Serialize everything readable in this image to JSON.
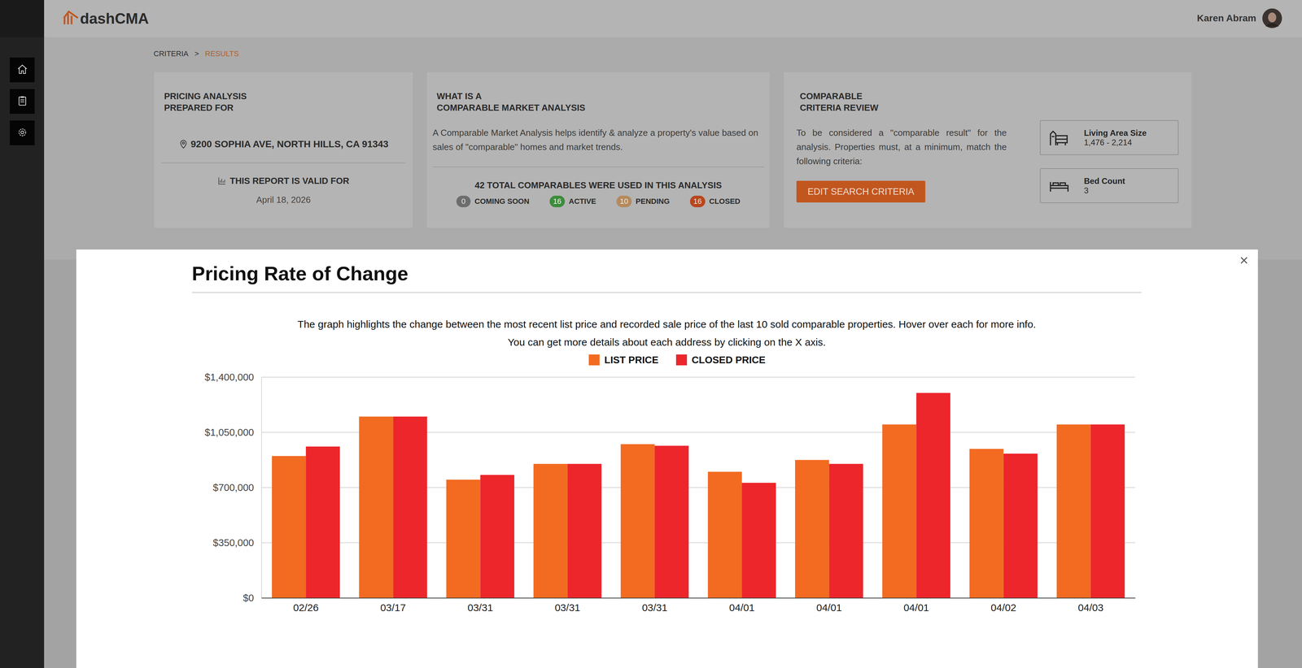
{
  "header": {
    "logo": "dashCMA",
    "user": "Karen Abram"
  },
  "breadcrumb": [
    "CRITERIA",
    ">",
    "RESULTS"
  ],
  "cards": {
    "prepared": {
      "title": [
        "PRICING ANALYSIS",
        "PREPARED FOR"
      ],
      "address": "9200 SOPHIA AVE, NORTH HILLS, CA 91343",
      "valid_label": "THIS REPORT IS VALID FOR",
      "valid_date": "April 18, 2026"
    },
    "about": {
      "title": [
        "WHAT IS A",
        "COMPARABLE MARKET ANALYSIS"
      ],
      "text": "A Comparable Market Analysis helps identify & analyze a property's value based on sales of \"comparable\" homes and market trends.",
      "total": "42 TOTAL COMPARABLES WERE USED IN THIS ANALYSIS",
      "statuses": [
        {
          "count": 0,
          "label": "COMING SOON"
        },
        {
          "count": 16,
          "label": "ACTIVE"
        },
        {
          "count": 10,
          "label": "PENDING"
        },
        {
          "count": 16,
          "label": "CLOSED"
        }
      ]
    },
    "criteria": {
      "title": [
        "COMPARABLE",
        "CRITERIA REVIEW"
      ],
      "text": "To be considered a \"comparable result\" for the analysis. Properties must, at a minimum, match the following criteria:",
      "button": "EDIT SEARCH CRITERIA",
      "items": [
        {
          "label": "Living Area Size",
          "value": "1,476 - 2,214"
        },
        {
          "label": "Bed Count",
          "value": "3"
        }
      ]
    }
  },
  "chart_data": {
    "type": "bar",
    "title": "Pricing Rate of Change",
    "subtitle": [
      "The graph highlights the change between the most recent list price and recorded sale price of the last 10 sold comparable properties. Hover over each for more info.",
      "You can get more details about each address by clicking on the X axis."
    ],
    "categories": [
      "02/26",
      "03/17",
      "03/31",
      "03/31",
      "03/31",
      "04/01",
      "04/01",
      "04/01",
      "04/02",
      "04/03"
    ],
    "series": [
      {
        "name": "LIST PRICE",
        "color": "#f26b21",
        "values": [
          900000,
          1150000,
          750000,
          850000,
          975000,
          800000,
          875000,
          1100000,
          945000,
          1100000
        ]
      },
      {
        "name": "CLOSED PRICE",
        "color": "#ec262b",
        "values": [
          960000,
          1150000,
          780000,
          850000,
          965000,
          730000,
          850000,
          1300000,
          915000,
          1100000
        ]
      }
    ],
    "ylim": [
      0,
      1400000
    ],
    "yticks": [
      {
        "value": 0,
        "label": "$0"
      },
      {
        "value": 350000,
        "label": "$350,000"
      },
      {
        "value": 700000,
        "label": "$700,000"
      },
      {
        "value": 1050000,
        "label": "$1,050,000"
      },
      {
        "value": 1400000,
        "label": "$1,400,000"
      }
    ],
    "grid": true,
    "legend": "top"
  }
}
